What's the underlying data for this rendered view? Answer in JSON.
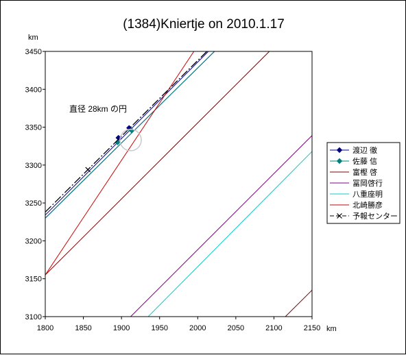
{
  "chart_data": {
    "type": "line",
    "title": "(1384)Kniertje on 2010.1.17",
    "xlabel": "km",
    "ylabel": "km",
    "xlim": [
      1800,
      2150
    ],
    "ylim": [
      3100,
      3450
    ],
    "x_ticks": [
      "1800",
      "1850",
      "1900",
      "1950",
      "2000",
      "2050",
      "2100",
      "2150"
    ],
    "y_ticks": [
      "3450",
      "3400",
      "3350",
      "3300",
      "3250",
      "3200",
      "3150",
      "3100"
    ],
    "grid": false,
    "legend_position": "right",
    "annotation": {
      "text": "直径 28km の円",
      "circle_center": [
        1912,
        3333
      ],
      "circle_diameter": 28
    },
    "series": [
      {
        "name": "渡辺 徹",
        "color": "#000080",
        "marker": "diamond",
        "lines": [
          {
            "x": [
              1800,
              2014
            ],
            "y": [
              3234,
              3450
            ]
          },
          {
            "x": [
              1800,
              2022
            ],
            "y": [
              3230,
              3450
            ]
          }
        ],
        "points": [
          {
            "x": 1896,
            "y": 3336
          },
          {
            "x": 1910,
            "y": 3349
          }
        ]
      },
      {
        "name": "佐藤 信",
        "color": "#008080",
        "marker": "diamond",
        "lines": [
          {
            "x": [
              1800,
              2022
            ],
            "y": [
              3230,
              3450
            ]
          }
        ],
        "points": [
          {
            "x": 1895,
            "y": 3330
          },
          {
            "x": 1913,
            "y": 3346
          }
        ]
      },
      {
        "name": "富樫 啓",
        "color": "#800000",
        "lines": [
          {
            "x": [
              1800,
              2094
            ],
            "y": [
              3155,
              3450
            ]
          },
          {
            "x": [
              2115,
              2150
            ],
            "y": [
              3100,
              3135
            ]
          }
        ]
      },
      {
        "name": "冨岡啓行",
        "color": "#800080",
        "lines": [
          {
            "x": [
              1912,
              2150
            ],
            "y": [
              3100,
              3339
            ]
          }
        ]
      },
      {
        "name": "八重座明",
        "color": "#00cccc",
        "lines": [
          {
            "x": [
              1935,
              2150
            ],
            "y": [
              3100,
              3318
            ]
          }
        ]
      },
      {
        "name": "北崎勝彦",
        "color": "#cc0000",
        "lines": [
          {
            "x": [
              1800,
              1995
            ],
            "y": [
              3155,
              3450
            ]
          }
        ]
      },
      {
        "name": "予報センター",
        "color": "#000000",
        "marker": "x",
        "dashed": true,
        "lines": [
          {
            "x": [
              1800,
              2012
            ],
            "y": [
              3238,
              3450
            ]
          }
        ],
        "points": [
          {
            "x": 1856,
            "y": 3294
          }
        ]
      }
    ]
  }
}
